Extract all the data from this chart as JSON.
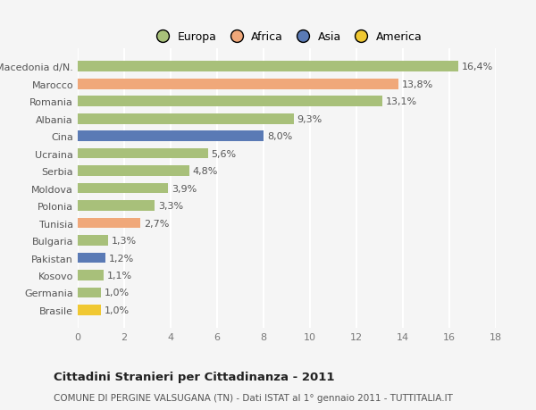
{
  "categories": [
    "Brasile",
    "Germania",
    "Kosovo",
    "Pakistan",
    "Bulgaria",
    "Tunisia",
    "Polonia",
    "Moldova",
    "Serbia",
    "Ucraina",
    "Cina",
    "Albania",
    "Romania",
    "Marocco",
    "Macedonia d/N."
  ],
  "values": [
    1.0,
    1.0,
    1.1,
    1.2,
    1.3,
    2.7,
    3.3,
    3.9,
    4.8,
    5.6,
    8.0,
    9.3,
    13.1,
    13.8,
    16.4
  ],
  "labels": [
    "1,0%",
    "1,0%",
    "1,1%",
    "1,2%",
    "1,3%",
    "2,7%",
    "3,3%",
    "3,9%",
    "4,8%",
    "5,6%",
    "8,0%",
    "9,3%",
    "13,1%",
    "13,8%",
    "16,4%"
  ],
  "colors": [
    "#f0c832",
    "#a8c07a",
    "#a8c07a",
    "#5a7ab5",
    "#a8c07a",
    "#f0a87a",
    "#a8c07a",
    "#a8c07a",
    "#a8c07a",
    "#a8c07a",
    "#5a7ab5",
    "#a8c07a",
    "#a8c07a",
    "#f0a87a",
    "#a8c07a"
  ],
  "continent_colors": {
    "Europa": "#a8c07a",
    "Africa": "#f0a87a",
    "Asia": "#5a7ab5",
    "America": "#f0c832"
  },
  "xlim": [
    0,
    18
  ],
  "xticks": [
    0,
    2,
    4,
    6,
    8,
    10,
    12,
    14,
    16,
    18
  ],
  "title": "Cittadini Stranieri per Cittadinanza - 2011",
  "subtitle": "COMUNE DI PERGINE VALSUGANA (TN) - Dati ISTAT al 1° gennaio 2011 - TUTTITALIA.IT",
  "background_color": "#f5f5f5",
  "grid_color": "#ffffff",
  "bar_height": 0.6,
  "label_fontsize": 8,
  "ytick_fontsize": 8,
  "xtick_fontsize": 8,
  "title_fontsize": 9.5,
  "subtitle_fontsize": 7.5
}
